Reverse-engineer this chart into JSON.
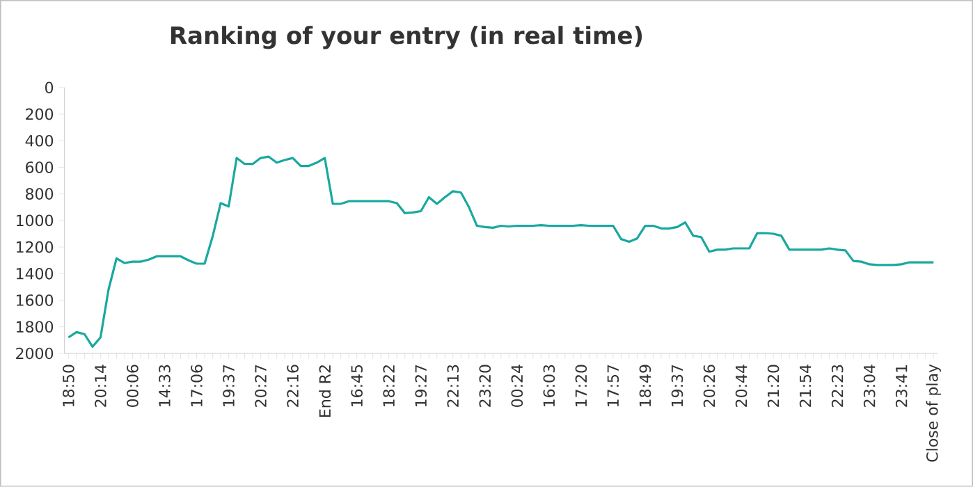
{
  "chart_data": {
    "type": "line",
    "title": "Ranking of your entry (in real time)",
    "categories": [
      "18:50",
      null,
      null,
      null,
      "20:14",
      null,
      null,
      null,
      "00:06",
      null,
      null,
      null,
      "14:33",
      null,
      null,
      null,
      "17:06",
      null,
      null,
      null,
      "19:37",
      null,
      null,
      null,
      "20:27",
      null,
      null,
      null,
      "22:16",
      null,
      null,
      null,
      "End R2",
      null,
      null,
      null,
      "16:45",
      null,
      null,
      null,
      "18:22",
      null,
      null,
      null,
      "19:27",
      null,
      null,
      null,
      "22:13",
      null,
      null,
      null,
      "23:20",
      null,
      null,
      null,
      "00:24",
      null,
      null,
      null,
      "16:03",
      null,
      null,
      null,
      "17:20",
      null,
      null,
      null,
      "17:57",
      null,
      null,
      null,
      "18:49",
      null,
      null,
      null,
      "19:37",
      null,
      null,
      null,
      "20:26",
      null,
      null,
      null,
      "20:44",
      null,
      null,
      null,
      "21:20",
      null,
      null,
      null,
      "21:54",
      null,
      null,
      null,
      "22:23",
      null,
      null,
      null,
      "23:04",
      null,
      null,
      null,
      "23:41",
      null,
      null,
      null,
      "Close of play"
    ],
    "values": [
      1880,
      1840,
      1855,
      1950,
      1880,
      1520,
      1285,
      1320,
      1310,
      1310,
      1295,
      1270,
      1270,
      1270,
      1270,
      1300,
      1325,
      1325,
      1120,
      870,
      895,
      530,
      575,
      575,
      530,
      520,
      565,
      545,
      530,
      590,
      590,
      565,
      530,
      875,
      875,
      855,
      855,
      855,
      855,
      855,
      855,
      870,
      945,
      940,
      930,
      825,
      875,
      825,
      780,
      790,
      900,
      1040,
      1050,
      1055,
      1040,
      1045,
      1040,
      1040,
      1040,
      1035,
      1040,
      1040,
      1040,
      1040,
      1035,
      1040,
      1040,
      1040,
      1040,
      1140,
      1160,
      1135,
      1040,
      1040,
      1060,
      1060,
      1050,
      1015,
      1115,
      1125,
      1235,
      1220,
      1220,
      1210,
      1210,
      1210,
      1095,
      1095,
      1100,
      1115,
      1220,
      1220,
      1220,
      1220,
      1220,
      1210,
      1220,
      1225,
      1305,
      1310,
      1330,
      1335,
      1335,
      1335,
      1330,
      1315,
      1315,
      1315,
      1315
    ],
    "color": "#1aa8a0",
    "ylim": [
      2000,
      0
    ],
    "yticks": [
      0,
      200,
      400,
      600,
      800,
      1000,
      1200,
      1400,
      1600,
      1800,
      2000
    ]
  }
}
